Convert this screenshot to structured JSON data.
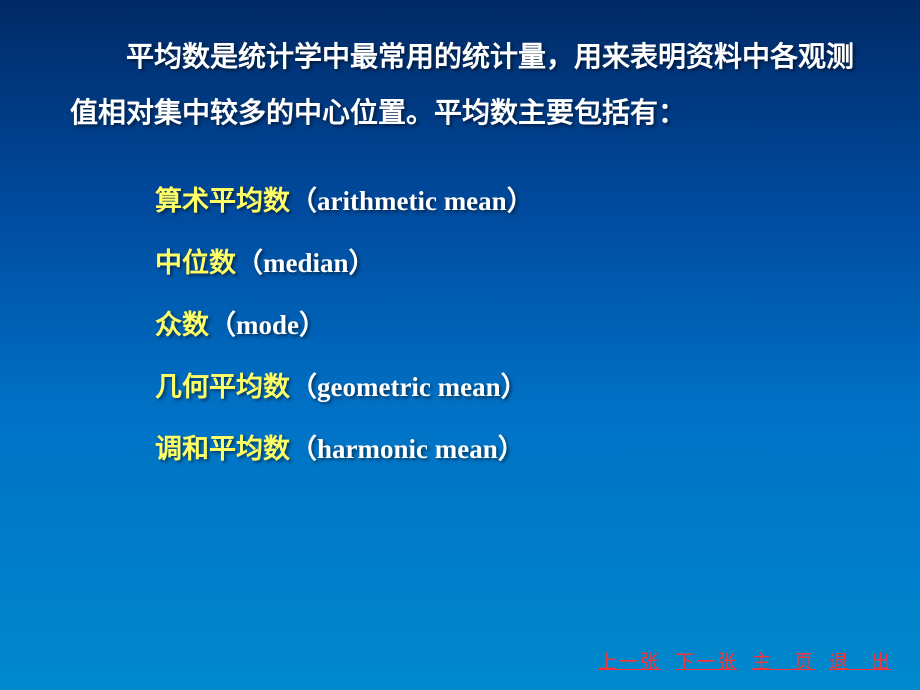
{
  "paragraph": "平均数是统计学中最常用的统计量，用来表明资料中各观测值相对集中较多的中心位置。平均数主要包括有：",
  "list": [
    {
      "cn": "算术平均数",
      "en": "arithmetic mean"
    },
    {
      "cn": "中位数",
      "en": "median"
    },
    {
      "cn": "众数",
      "en": "mode"
    },
    {
      "cn": "几何平均数",
      "en": "geometric mean"
    },
    {
      "cn": "调和平均数",
      "en": "harmonic mean"
    }
  ],
  "nav": {
    "prev": "上一张",
    "next": "下一张",
    "home": "主　页",
    "exit": "退　出"
  },
  "colors": {
    "bg_top": "#002a66",
    "bg_mid": "#0072c6",
    "bg_bottom": "#0088cc",
    "body_text": "#ffffff",
    "highlight_text": "#ffff66",
    "nav_text": "#ff3333"
  },
  "typography": {
    "para_fontsize": 28,
    "list_fontsize": 27,
    "nav_fontsize": 19,
    "font_family": "SimSun"
  }
}
